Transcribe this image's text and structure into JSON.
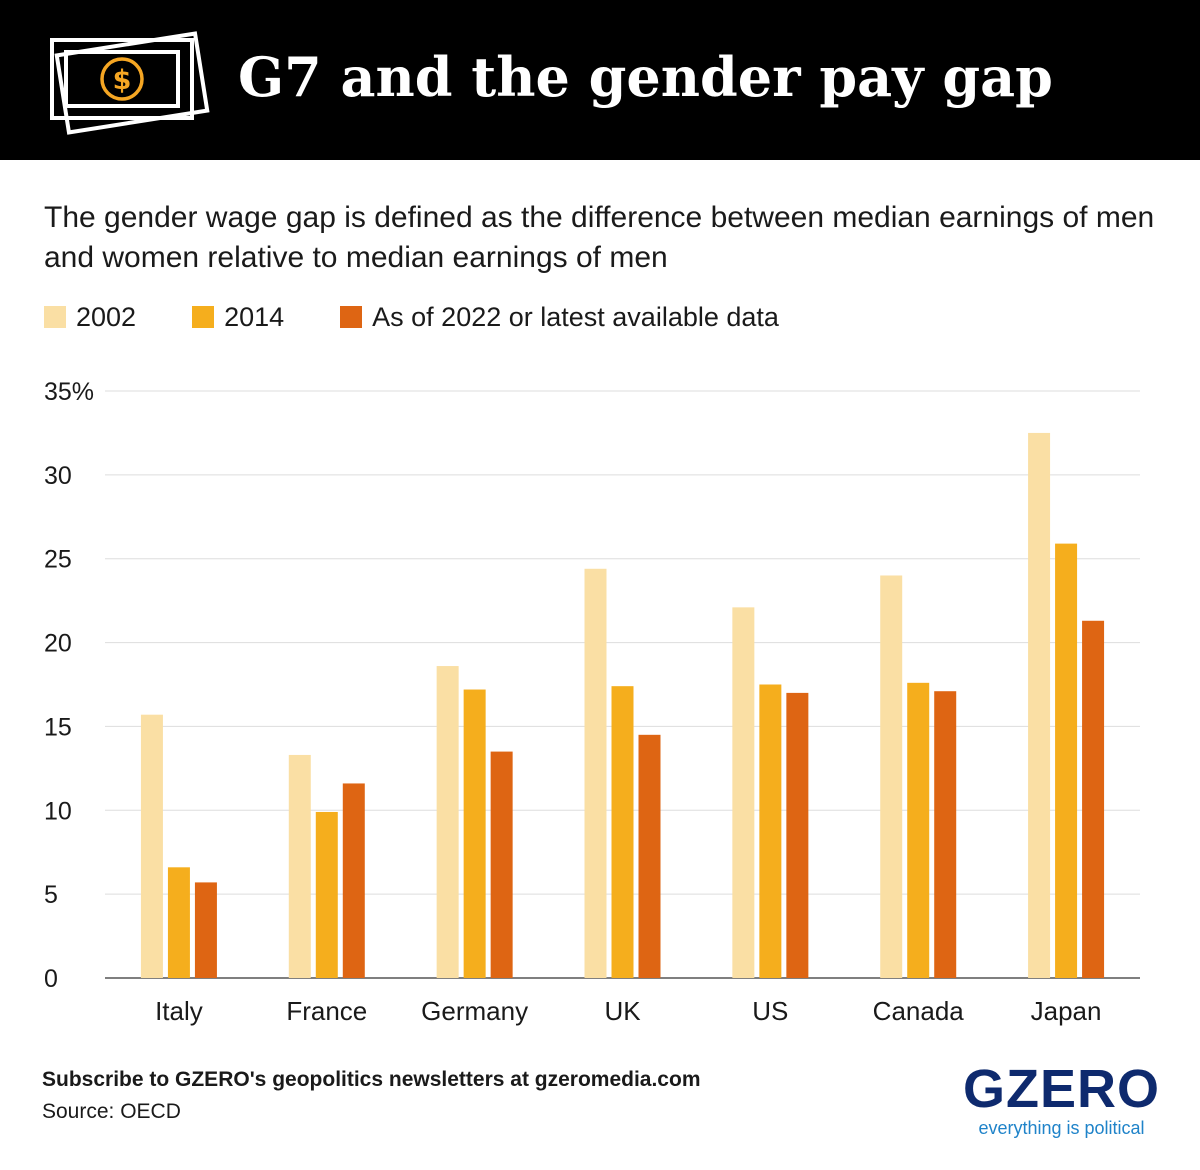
{
  "header": {
    "title": "G7 and the gender pay gap",
    "icon": "money-bill-icon"
  },
  "subtitle": "The gender wage gap is defined as the difference between median earnings of men and women relative to median earnings of men",
  "colors": {
    "header_bg": "#000000",
    "accent": "#f5a623",
    "s2002": "#fadfa4",
    "s2014": "#f5ae1d",
    "s2022": "#de6513",
    "brand": "#0e2a6e",
    "brand_tag": "#1f83c9"
  },
  "chart_data": {
    "type": "bar",
    "categories": [
      "Italy",
      "France",
      "Germany",
      "UK",
      "US",
      "Canada",
      "Japan"
    ],
    "series": [
      {
        "name": "2002",
        "color": "#fadfa4",
        "values": [
          15.7,
          13.3,
          18.6,
          24.4,
          22.1,
          24.0,
          32.5
        ]
      },
      {
        "name": "2014",
        "color": "#f5ae1d",
        "values": [
          6.6,
          9.9,
          17.2,
          17.4,
          17.5,
          17.6,
          25.9
        ]
      },
      {
        "name": "As of 2022 or latest available data",
        "color": "#de6513",
        "values": [
          5.7,
          11.6,
          13.5,
          14.5,
          17.0,
          17.1,
          21.3
        ]
      }
    ],
    "yticks": [
      "0",
      "5",
      "10",
      "15",
      "20",
      "25",
      "30",
      "35%"
    ],
    "ylim": [
      0,
      35
    ],
    "grid": true,
    "legend_position": "top-left"
  },
  "footer": {
    "cta": "Subscribe to GZERO's geopolitics newsletters at gzeromedia.com",
    "source": "Source: OECD",
    "brand": "GZERO",
    "tagline": "everything is political"
  }
}
